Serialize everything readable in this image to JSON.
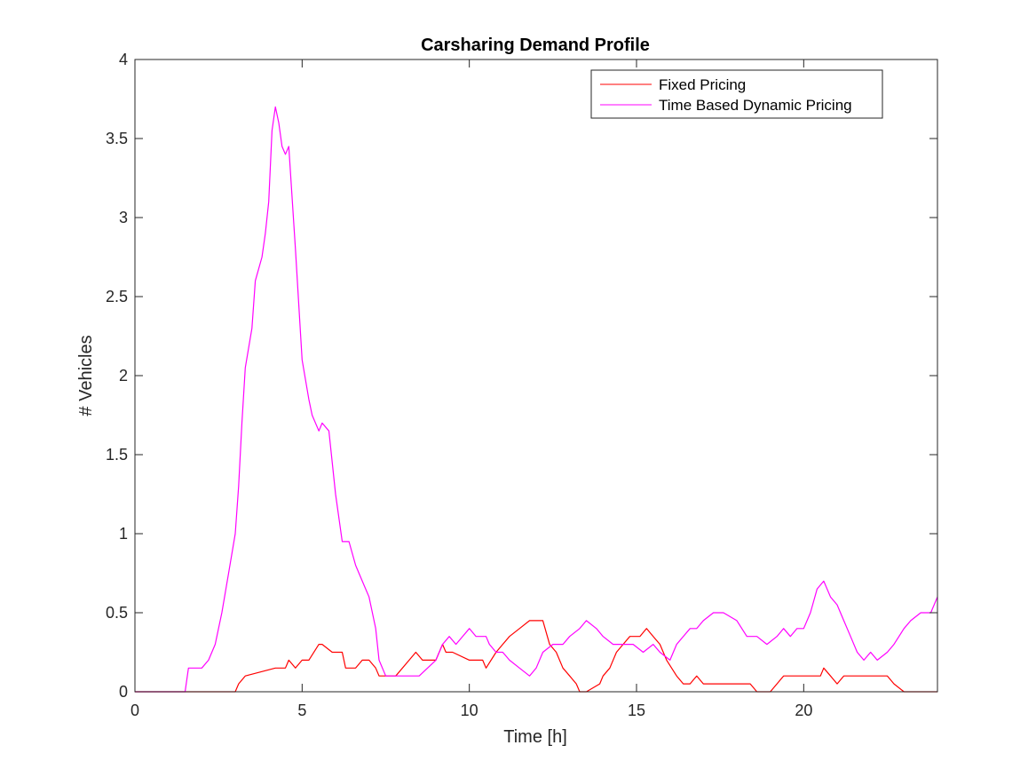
{
  "chart_data": {
    "type": "line",
    "title": "Carsharing Demand Profile",
    "xlabel": "Time [h]",
    "ylabel": "# Vehicles",
    "xlim": [
      0,
      24
    ],
    "ylim": [
      0,
      4
    ],
    "xticks": [
      0,
      5,
      10,
      15,
      20
    ],
    "yticks": [
      0,
      0.5,
      1,
      1.5,
      2,
      2.5,
      3,
      3.5,
      4
    ],
    "ytick_labels": [
      "0",
      "0.5",
      "1",
      "1.5",
      "2",
      "2.5",
      "3",
      "3.5",
      "4"
    ],
    "xtick_labels": [
      "0",
      "5",
      "10",
      "15",
      "20"
    ],
    "grid": false,
    "legend_position": "top-right",
    "colors": {
      "fixed": "#ff0000",
      "dynamic": "#ff00ff",
      "axis": "#262626"
    },
    "series": [
      {
        "name": "Fixed Pricing",
        "color": "#ff0000",
        "x": [
          0,
          3.0,
          3.1,
          3.3,
          4.2,
          4.5,
          4.6,
          4.8,
          5.0,
          5.2,
          5.5,
          5.6,
          5.9,
          6.2,
          6.3,
          6.6,
          6.8,
          7.0,
          7.2,
          7.3,
          7.8,
          8.2,
          8.4,
          8.6,
          8.7,
          9.0,
          9.2,
          9.3,
          9.5,
          10.0,
          10.4,
          10.5,
          10.8,
          11.0,
          11.2,
          11.5,
          11.8,
          12.2,
          12.4,
          12.6,
          12.8,
          13.0,
          13.2,
          13.3,
          13.5,
          13.9,
          14.0,
          14.2,
          14.4,
          14.6,
          14.8,
          15.1,
          15.3,
          15.5,
          15.7,
          15.9,
          16.2,
          16.4,
          16.6,
          16.8,
          17.0,
          17.5,
          18.0,
          18.4,
          18.6,
          19.0,
          19.2,
          19.4,
          20.0,
          20.5,
          20.6,
          20.8,
          21.0,
          21.2,
          21.5,
          22.0,
          22.5,
          22.7,
          23.0,
          24.0
        ],
        "y": [
          0,
          0,
          0.05,
          0.1,
          0.15,
          0.15,
          0.2,
          0.15,
          0.2,
          0.2,
          0.3,
          0.3,
          0.25,
          0.25,
          0.15,
          0.15,
          0.2,
          0.2,
          0.15,
          0.1,
          0.1,
          0.2,
          0.25,
          0.2,
          0.2,
          0.2,
          0.3,
          0.25,
          0.25,
          0.2,
          0.2,
          0.15,
          0.25,
          0.3,
          0.35,
          0.4,
          0.45,
          0.45,
          0.3,
          0.25,
          0.15,
          0.1,
          0.05,
          0.0,
          0.0,
          0.05,
          0.1,
          0.15,
          0.25,
          0.3,
          0.35,
          0.35,
          0.4,
          0.35,
          0.3,
          0.2,
          0.1,
          0.05,
          0.05,
          0.1,
          0.05,
          0.05,
          0.05,
          0.05,
          0.0,
          0.0,
          0.05,
          0.1,
          0.1,
          0.1,
          0.15,
          0.1,
          0.05,
          0.1,
          0.1,
          0.1,
          0.1,
          0.05,
          0.0,
          0.0
        ]
      },
      {
        "name": "Time Based Dynamic Pricing",
        "color": "#ff00ff",
        "x": [
          0,
          1.5,
          1.6,
          2.0,
          2.2,
          2.4,
          2.6,
          2.8,
          3.0,
          3.1,
          3.2,
          3.3,
          3.5,
          3.6,
          3.8,
          3.9,
          4.0,
          4.1,
          4.2,
          4.3,
          4.4,
          4.5,
          4.6,
          4.8,
          5.0,
          5.2,
          5.3,
          5.5,
          5.6,
          5.8,
          6.0,
          6.2,
          6.4,
          6.6,
          6.8,
          7.0,
          7.2,
          7.3,
          7.5,
          8.0,
          8.5,
          9.0,
          9.2,
          9.4,
          9.6,
          9.8,
          10.0,
          10.2,
          10.5,
          10.6,
          10.8,
          11.0,
          11.2,
          11.5,
          11.8,
          12.0,
          12.2,
          12.5,
          12.8,
          13.0,
          13.3,
          13.5,
          13.8,
          14.0,
          14.3,
          14.6,
          14.9,
          15.2,
          15.5,
          15.7,
          16.0,
          16.2,
          16.4,
          16.6,
          16.8,
          17.0,
          17.3,
          17.6,
          18.0,
          18.3,
          18.6,
          18.9,
          19.2,
          19.4,
          19.6,
          19.8,
          20.0,
          20.2,
          20.4,
          20.6,
          20.8,
          21.0,
          21.2,
          21.4,
          21.6,
          21.8,
          22.0,
          22.2,
          22.5,
          22.7,
          23.0,
          23.2,
          23.5,
          23.8,
          24.0
        ],
        "y": [
          0,
          0,
          0.15,
          0.15,
          0.2,
          0.3,
          0.5,
          0.75,
          1.0,
          1.3,
          1.7,
          2.05,
          2.3,
          2.6,
          2.75,
          2.9,
          3.1,
          3.55,
          3.7,
          3.6,
          3.45,
          3.4,
          3.45,
          2.8,
          2.1,
          1.85,
          1.75,
          1.65,
          1.7,
          1.65,
          1.25,
          0.95,
          0.95,
          0.8,
          0.7,
          0.6,
          0.4,
          0.2,
          0.1,
          0.1,
          0.1,
          0.2,
          0.3,
          0.35,
          0.3,
          0.35,
          0.4,
          0.35,
          0.35,
          0.3,
          0.25,
          0.25,
          0.2,
          0.15,
          0.1,
          0.15,
          0.25,
          0.3,
          0.3,
          0.35,
          0.4,
          0.45,
          0.4,
          0.35,
          0.3,
          0.3,
          0.3,
          0.25,
          0.3,
          0.25,
          0.2,
          0.3,
          0.35,
          0.4,
          0.4,
          0.45,
          0.5,
          0.5,
          0.45,
          0.35,
          0.35,
          0.3,
          0.35,
          0.4,
          0.35,
          0.4,
          0.4,
          0.5,
          0.65,
          0.7,
          0.6,
          0.55,
          0.45,
          0.35,
          0.25,
          0.2,
          0.25,
          0.2,
          0.25,
          0.3,
          0.4,
          0.45,
          0.5,
          0.5,
          0.6
        ]
      }
    ]
  }
}
